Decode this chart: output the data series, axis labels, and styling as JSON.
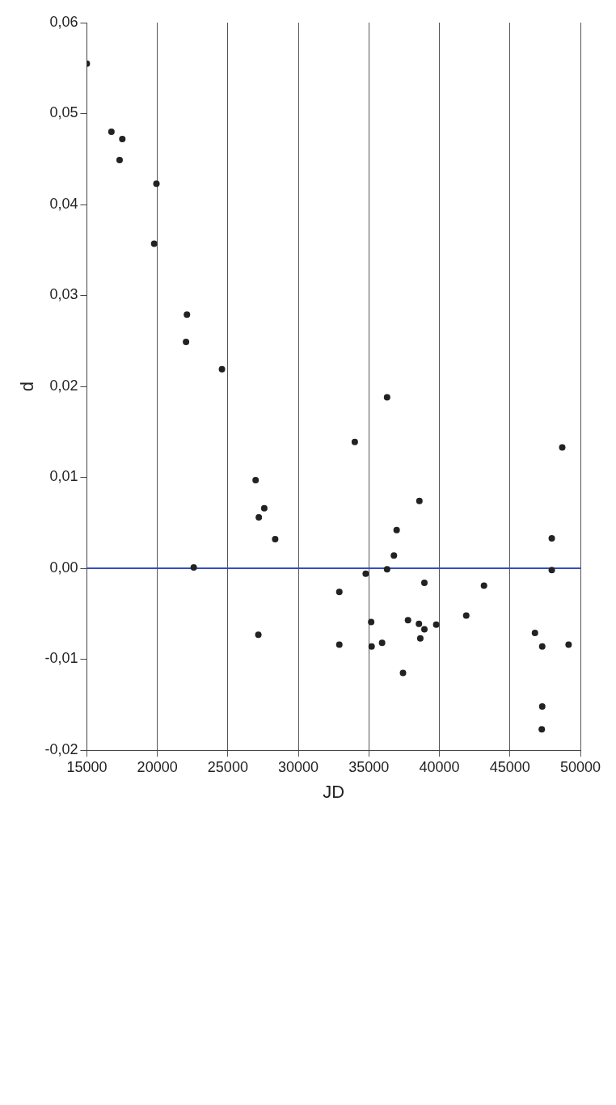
{
  "chart_data": {
    "type": "scatter",
    "xlabel": "JD",
    "ylabel": "d",
    "x": [
      15000,
      16742,
      17516,
      17323,
      19935,
      19774,
      22097,
      22032,
      24581,
      22580,
      26968,
      27581,
      27194,
      28355,
      27161,
      36290,
      34000,
      36968,
      36774,
      36290,
      34774,
      32903,
      32903,
      38581,
      38935,
      35161,
      35194,
      35935,
      37774,
      38935,
      38548,
      38645,
      39774,
      37419,
      41903,
      43161,
      48710,
      47968,
      47968,
      46774,
      47290,
      49161,
      47290,
      47258
    ],
    "series": [
      {
        "color": "#222222",
        "values": [
          0.0555,
          0.048,
          0.0472,
          0.0449,
          0.0423,
          0.0357,
          0.0279,
          0.0249,
          0.0219,
          0.0001,
          0.0097,
          0.0066,
          0.0056,
          0.0032,
          -0.0073,
          0.0188,
          0.0139,
          0.0042,
          0.0014,
          -0.0001,
          -0.0006,
          -0.0026,
          -0.0084,
          0.0074,
          -0.0016,
          -0.0059,
          -0.0086,
          -0.0082,
          -0.0057,
          -0.0067,
          -0.0061,
          -0.0077,
          -0.0062,
          -0.0115,
          -0.0052,
          -0.0019,
          0.0133,
          0.0033,
          -0.0002,
          -0.0071,
          -0.0086,
          -0.0084,
          -0.0152,
          -0.0177
        ]
      }
    ],
    "xlim": [
      15000,
      50000
    ],
    "xticks": [
      15000,
      20000,
      25000,
      30000,
      35000,
      40000,
      45000,
      50000
    ],
    "ylim": [
      -0.02,
      0.06
    ],
    "yticks": [
      {
        "value": -0.02,
        "label": "-0,02"
      },
      {
        "value": -0.01,
        "label": "-0,01"
      },
      {
        "value": 0,
        "label": "0,00"
      },
      {
        "value": 0.01,
        "label": "0,01"
      },
      {
        "value": 0.02,
        "label": "0,02"
      },
      {
        "value": 0.03,
        "label": "0,03"
      },
      {
        "value": 0.04,
        "label": "0,04"
      },
      {
        "value": 0.05,
        "label": "0,05"
      },
      {
        "value": 0.06,
        "label": "0,06"
      }
    ],
    "ref_lines": [
      {
        "axis": "y",
        "value": 0,
        "color": "#3050c0"
      }
    ],
    "grid": "x",
    "legend": false,
    "marker": "circle"
  }
}
